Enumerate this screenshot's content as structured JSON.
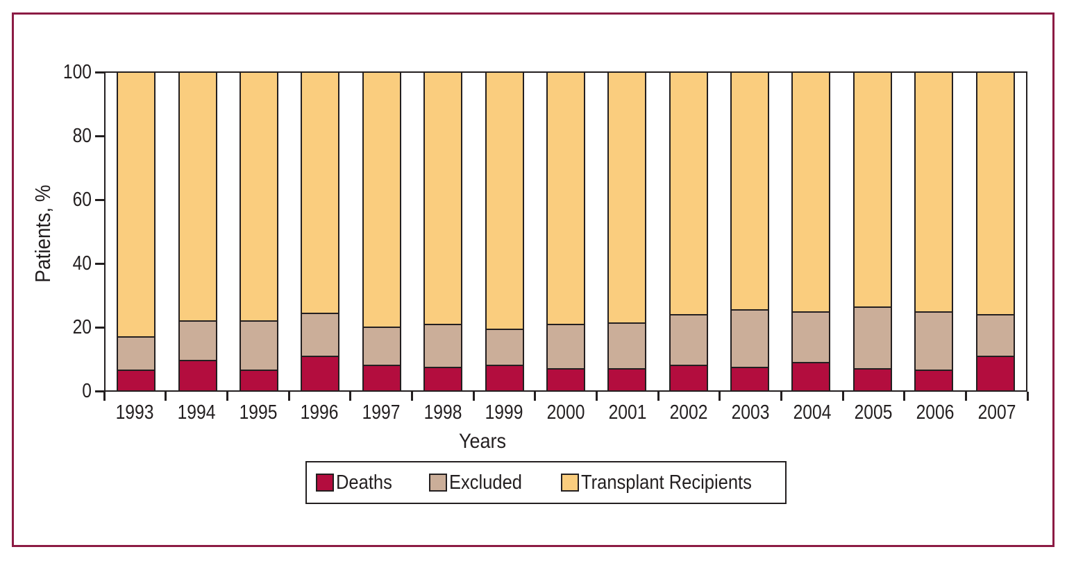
{
  "figure": {
    "frame_color": "#8c1b44",
    "background_color": "#ffffff",
    "outline_color": "#231f20"
  },
  "chart_data": {
    "type": "bar",
    "stacked": true,
    "title": "",
    "xlabel": "Years",
    "ylabel": "Patients, %",
    "ylim": [
      0,
      100
    ],
    "yticks": [
      0,
      20,
      40,
      60,
      80,
      100
    ],
    "grid": false,
    "legend_position": "bottom",
    "categories": [
      "1993",
      "1994",
      "1995",
      "1996",
      "1997",
      "1998",
      "1999",
      "2000",
      "2001",
      "2002",
      "2003",
      "2004",
      "2005",
      "2006",
      "2007"
    ],
    "series": [
      {
        "name": "Deaths",
        "color": "#b30d3e",
        "values": [
          6.5,
          9.5,
          6.5,
          11,
          8,
          7.5,
          8,
          7,
          7,
          8,
          7.5,
          9,
          7,
          6.5,
          11
        ]
      },
      {
        "name": "Excluded",
        "color": "#cbae99",
        "values": [
          10.5,
          12.5,
          15.5,
          13.5,
          12,
          13.5,
          11.5,
          14,
          14.5,
          16,
          18,
          16,
          19.5,
          18.5,
          13
        ]
      },
      {
        "name": "Transplant Recipients",
        "color": "#facd7e",
        "values": [
          83,
          78,
          78,
          75.5,
          80,
          79,
          80.5,
          79,
          78.5,
          76,
          74.5,
          75,
          73.5,
          75,
          76
        ]
      }
    ]
  }
}
